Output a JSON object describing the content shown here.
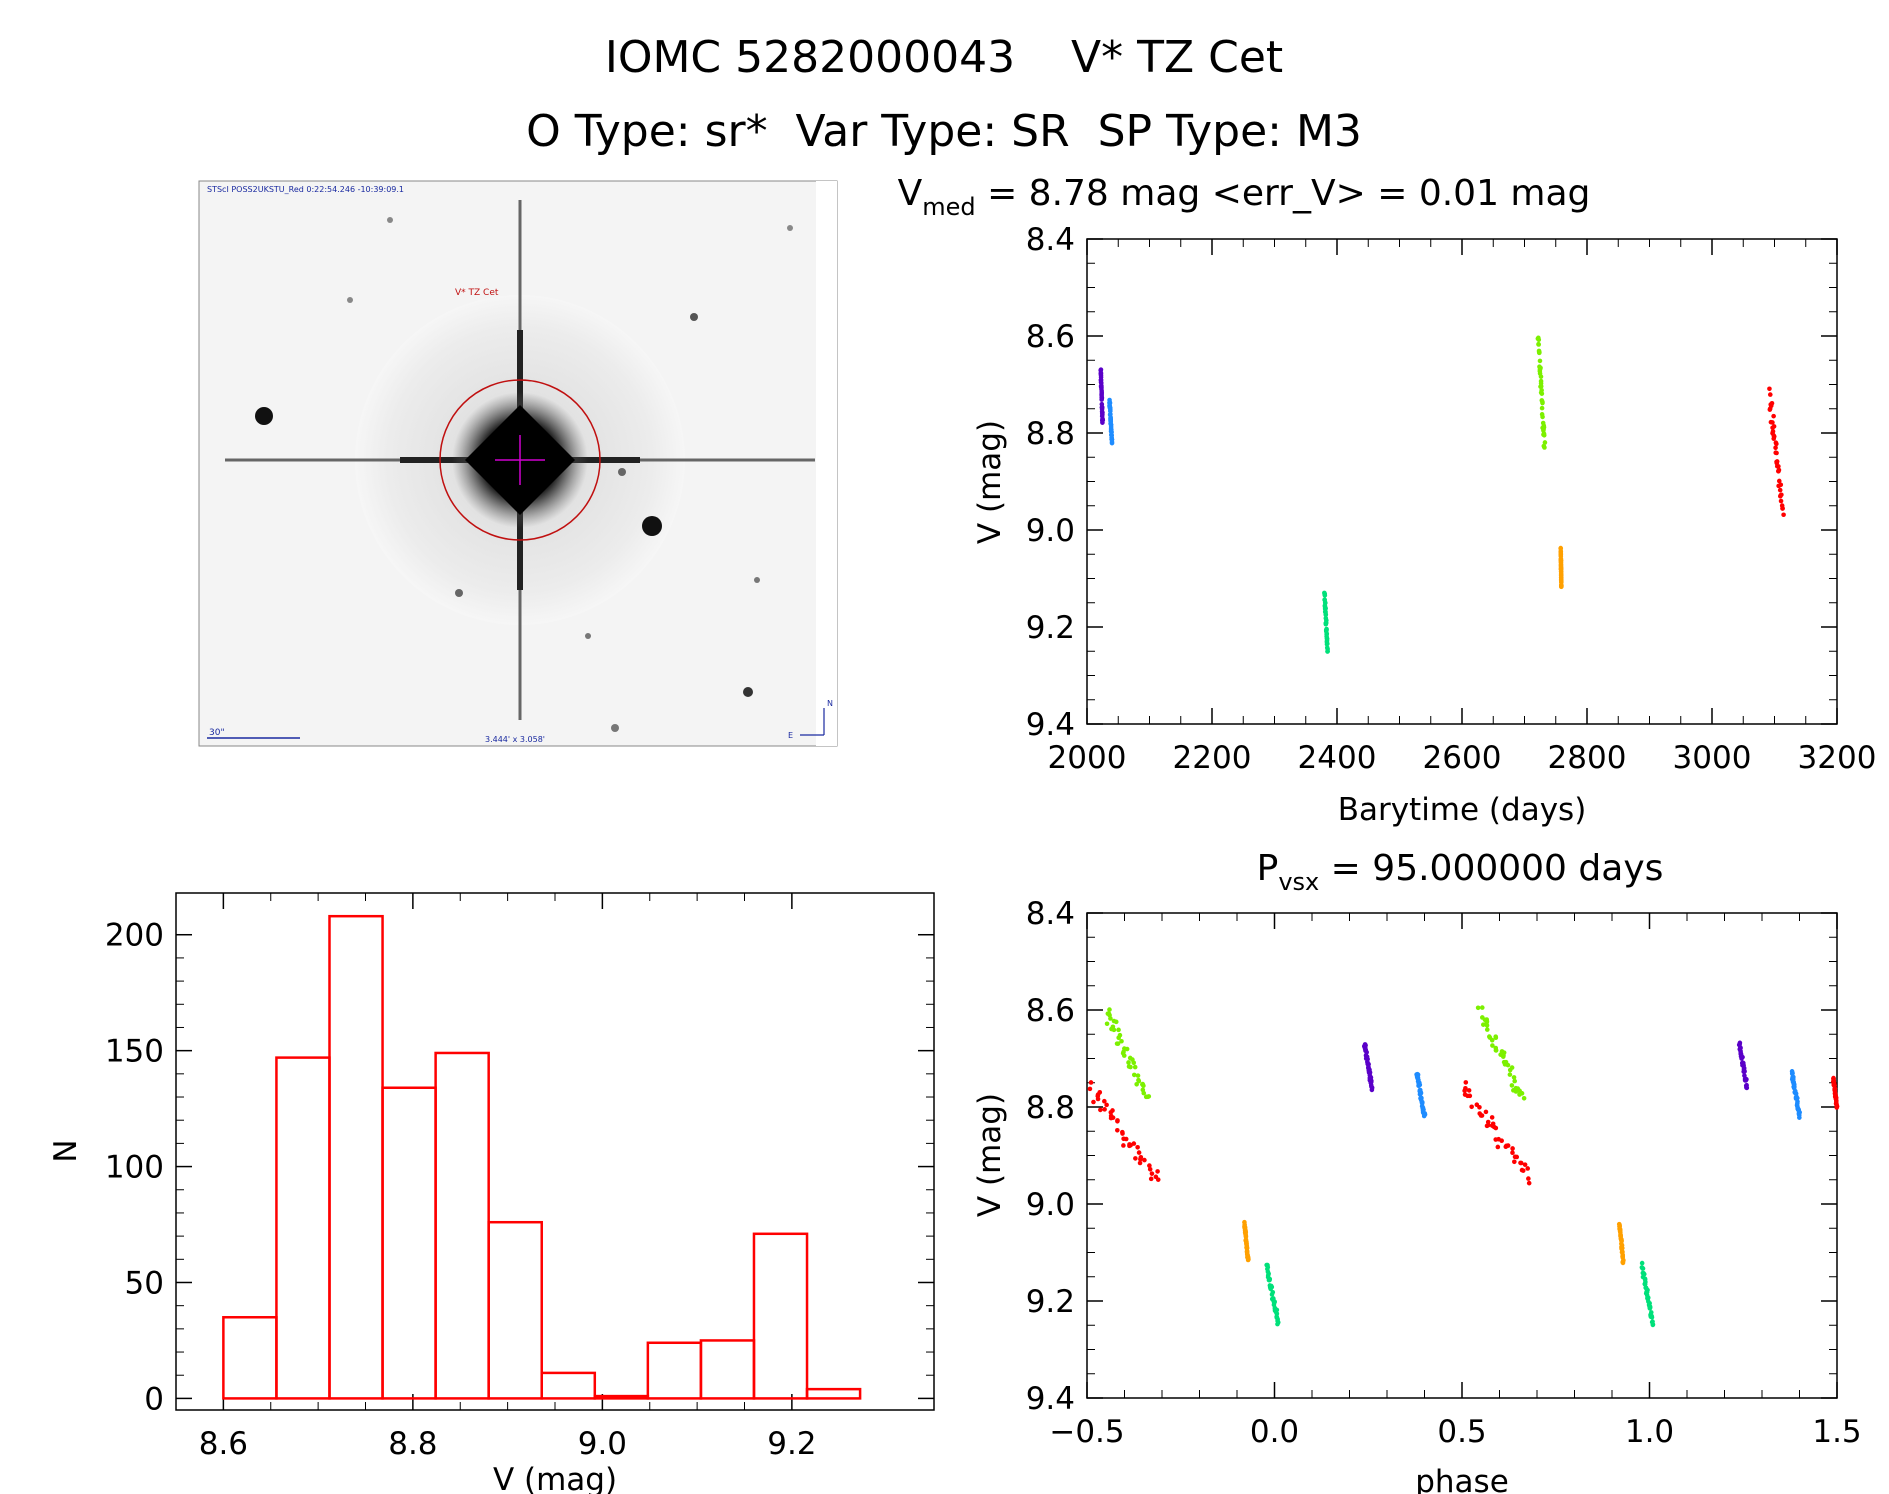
{
  "header": {
    "line1": "IOMC 5282000043    V* TZ Cet",
    "line2": "O Type: sr*  Var Type: SR  SP Type: M3"
  },
  "finder": {
    "top_label": "STScI POSS2UKSTU_Red 0:22:54.246 -10:39:09.1",
    "star_label": "V* TZ Cet",
    "scale_label": "30\"",
    "fov_label": "3.444' x 3.058'",
    "compass_n": "N",
    "compass_e": "E"
  },
  "colors": {
    "season1": "#5a00c8",
    "season2": "#1e8cff",
    "season3": "#00e07a",
    "season4": "#7cf000",
    "season5": "#ffa000",
    "season6": "#ff0000",
    "histogram": "#ff0000"
  },
  "chart_data": [
    {
      "type": "scatter",
      "id": "lightcurve",
      "title_main": "V",
      "title_sub": "med",
      "title_rest": " = 8.78 mag <err_V> = 0.01 mag",
      "xlabel": "Barytime (days)",
      "ylabel": "V (mag)",
      "xlim": [
        2000,
        3200
      ],
      "ylim": [
        9.4,
        8.4
      ],
      "xticks": [
        "2000",
        "2200",
        "2400",
        "2600",
        "2800",
        "3000",
        "3200"
      ],
      "yticks": [
        "8.4",
        "8.6",
        "8.8",
        "9.0",
        "9.2",
        "9.4"
      ],
      "series": [
        {
          "color_key": "season1",
          "x": [
            2022,
            2025
          ],
          "y": [
            8.67,
            8.78
          ]
        },
        {
          "color_key": "season2",
          "x": [
            2036,
            2040
          ],
          "y": [
            8.73,
            8.82
          ]
        },
        {
          "color_key": "season3",
          "x": [
            2380,
            2385
          ],
          "y": [
            9.13,
            9.25
          ]
        },
        {
          "color_key": "season4",
          "x": [
            2722,
            2732
          ],
          "y": [
            8.6,
            8.83
          ]
        },
        {
          "color_key": "season5",
          "x": [
            2758,
            2759
          ],
          "y": [
            9.04,
            9.12
          ]
        },
        {
          "color_key": "season6",
          "x": [
            3092,
            3113
          ],
          "y": [
            8.72,
            8.96
          ]
        }
      ]
    },
    {
      "type": "bar",
      "id": "histogram",
      "xlabel": "V (mag)",
      "ylabel": "N",
      "xlim": [
        8.55,
        9.35
      ],
      "ylim": [
        -5,
        218
      ],
      "xticks": [
        "8.6",
        "8.8",
        "9.0",
        "9.2"
      ],
      "yticks": [
        "0",
        "50",
        "100",
        "150",
        "200"
      ],
      "bin_start": 8.6,
      "bin_width": 0.056,
      "values": [
        35,
        147,
        208,
        134,
        149,
        76,
        11,
        1,
        24,
        25,
        71,
        4
      ]
    },
    {
      "type": "scatter",
      "id": "phased",
      "title_main": "P",
      "title_sub": "vsx",
      "title_rest": " = 95.000000 days",
      "xlabel": "phase",
      "ylabel": "V (mag)",
      "xlim": [
        -0.5,
        1.5
      ],
      "ylim": [
        9.4,
        8.4
      ],
      "xticks": [
        "−0.5",
        "0.0",
        "0.5",
        "1.0",
        "1.5"
      ],
      "yticks": [
        "8.4",
        "8.6",
        "8.8",
        "9.0",
        "9.2",
        "9.4"
      ],
      "series": [
        {
          "color_key": "season4",
          "x": [
            -0.45,
            -0.34
          ],
          "y": [
            8.6,
            8.78
          ]
        },
        {
          "color_key": "season6",
          "x": [
            -0.49,
            -0.32
          ],
          "y": [
            8.76,
            8.95
          ]
        },
        {
          "color_key": "season1",
          "x": [
            0.24,
            0.26
          ],
          "y": [
            8.67,
            8.76
          ]
        },
        {
          "color_key": "season2",
          "x": [
            0.38,
            0.4
          ],
          "y": [
            8.73,
            8.82
          ]
        },
        {
          "color_key": "season5",
          "x": [
            -0.08,
            -0.07
          ],
          "y": [
            9.04,
            9.12
          ]
        },
        {
          "color_key": "season3",
          "x": [
            -0.02,
            0.01
          ],
          "y": [
            9.13,
            9.25
          ]
        },
        {
          "color_key": "season4",
          "x": [
            0.55,
            0.66
          ],
          "y": [
            8.6,
            8.78
          ]
        },
        {
          "color_key": "season6",
          "x": [
            0.5,
            0.68
          ],
          "y": [
            8.76,
            8.95
          ]
        },
        {
          "color_key": "season1",
          "x": [
            1.24,
            1.26
          ],
          "y": [
            8.67,
            8.76
          ]
        },
        {
          "color_key": "season2",
          "x": [
            1.38,
            1.4
          ],
          "y": [
            8.73,
            8.82
          ]
        },
        {
          "color_key": "season5",
          "x": [
            0.92,
            0.93
          ],
          "y": [
            9.04,
            9.12
          ]
        },
        {
          "color_key": "season3",
          "x": [
            0.98,
            1.01
          ],
          "y": [
            9.13,
            9.25
          ]
        },
        {
          "color_key": "season6",
          "x": [
            1.49,
            1.5
          ],
          "y": [
            8.74,
            8.8
          ]
        }
      ]
    }
  ]
}
